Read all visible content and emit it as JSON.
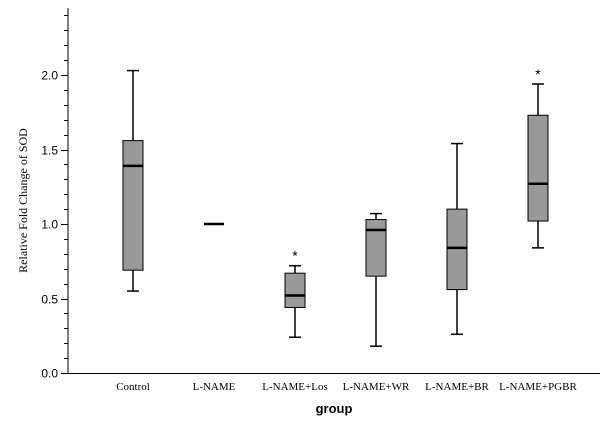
{
  "chart_data": {
    "type": "boxplot",
    "xlabel": "group",
    "ylabel": "Relative Fold Change of SOD",
    "ylim": [
      0,
      2.45
    ],
    "y_ticks": [
      0.0,
      0.5,
      1.0,
      1.5,
      2.0
    ],
    "y_tick_labels": [
      "0.0",
      "0.5",
      "1.0",
      "1.5",
      "2.0"
    ],
    "minor_tick_step": 0.1,
    "grid": false,
    "box_color": "#999999",
    "categories": [
      "Control",
      "L-NAME",
      "L-NAME+Los",
      "L-NAME+WR",
      "L-NAME+BR",
      "L-NAME+PGBR"
    ],
    "boxes": [
      {
        "min": 0.55,
        "q1": 0.69,
        "median": 1.39,
        "q3": 1.56,
        "max": 2.03,
        "annotation": ""
      },
      {
        "min": 1.0,
        "q1": 1.0,
        "median": 1.0,
        "q3": 1.0,
        "max": 1.0,
        "annotation": ""
      },
      {
        "min": 0.24,
        "q1": 0.44,
        "median": 0.52,
        "q3": 0.67,
        "max": 0.72,
        "annotation": "*"
      },
      {
        "min": 0.18,
        "q1": 0.65,
        "median": 0.96,
        "q3": 1.03,
        "max": 1.07,
        "annotation": ""
      },
      {
        "min": 0.26,
        "q1": 0.56,
        "median": 0.84,
        "q3": 1.1,
        "max": 1.54,
        "annotation": ""
      },
      {
        "min": 0.84,
        "q1": 1.02,
        "median": 1.27,
        "q3": 1.73,
        "max": 1.94,
        "annotation": "*"
      }
    ]
  }
}
